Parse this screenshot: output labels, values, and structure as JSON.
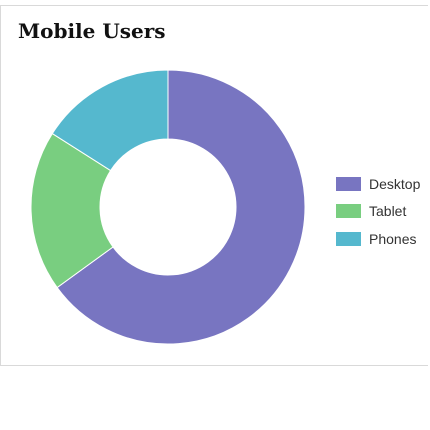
{
  "chart_data": {
    "type": "pie",
    "title": "Mobile Users",
    "categories": [
      "Desktop",
      "Tablet",
      "Phones"
    ],
    "values": [
      65,
      19,
      16
    ],
    "colors": [
      "#7875c1",
      "#79ce80",
      "#55b8ce"
    ],
    "donut": true,
    "legend": "right"
  }
}
